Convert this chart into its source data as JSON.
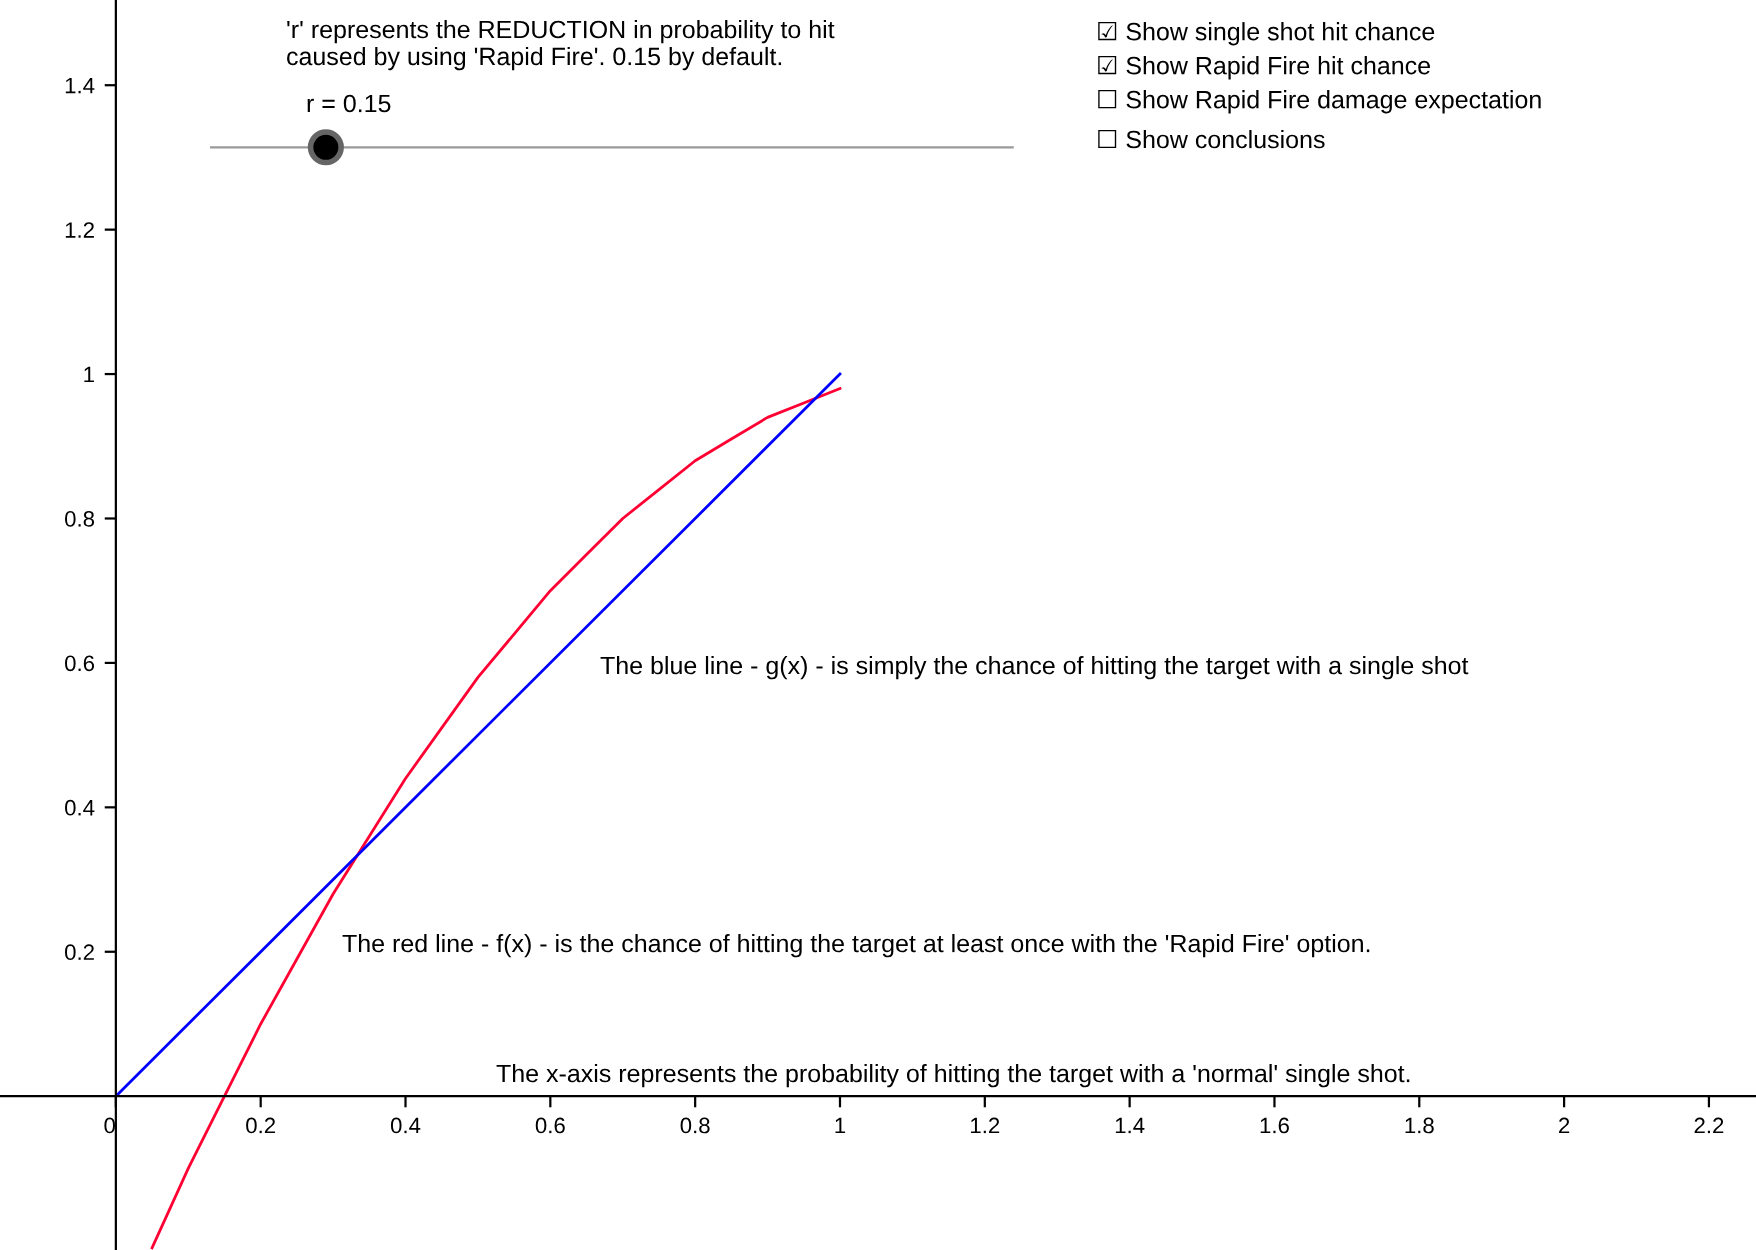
{
  "chart_data": {
    "type": "line",
    "x": [
      0.05,
      0.1,
      0.15,
      0.2,
      0.25,
      0.3,
      0.35,
      0.4,
      0.45,
      0.5,
      0.55,
      0.6,
      0.65,
      0.7,
      0.75,
      0.8,
      0.85,
      0.9,
      0.95,
      1.0
    ],
    "series": [
      {
        "color": "#ff0033",
        "values": [
          -0.21,
          -0.1,
          0,
          0.1,
          0.19,
          0.28,
          0.36,
          0.44,
          0.51,
          0.58,
          0.64,
          0.7,
          0.75,
          0.8,
          0.84,
          0.88,
          0.91,
          0.94,
          0.96,
          0.98
        ]
      },
      {
        "color": "#0000ff",
        "x": [
          0,
          1
        ],
        "values": [
          0,
          1
        ]
      }
    ],
    "xlim": [
      -0.16,
      2.265
    ],
    "ylim": [
      -0.213,
      1.518
    ],
    "xticks": [
      0,
      0.2,
      0.4,
      0.6,
      0.8,
      1,
      1.2,
      1.4,
      1.6,
      1.8,
      2,
      2.2
    ],
    "yticks": [
      0.2,
      0.4,
      0.6,
      0.8,
      1,
      1.2,
      1.4
    ],
    "grid": false,
    "legend": false,
    "marker": "none",
    "line_style": "solid",
    "annotations": [
      "'r' represents the REDUCTION in probability to hit\ncaused by using 'Rapid Fire'. 0.15 by default.",
      "r = 0.15",
      "☑ Show single shot hit chance",
      "☑ Show Rapid Fire hit chance",
      "☐ Show Rapid Fire damage expectation",
      "☐ Show conclusions",
      "The blue line - g(x) - is simply the chance of hitting the target with a single shot",
      "The red line - f(x) - is the chance of hitting the target at least once with the 'Rapid Fire' option.",
      "The x-axis represents the probability of hitting the target with a 'normal' single shot."
    ]
  }
}
